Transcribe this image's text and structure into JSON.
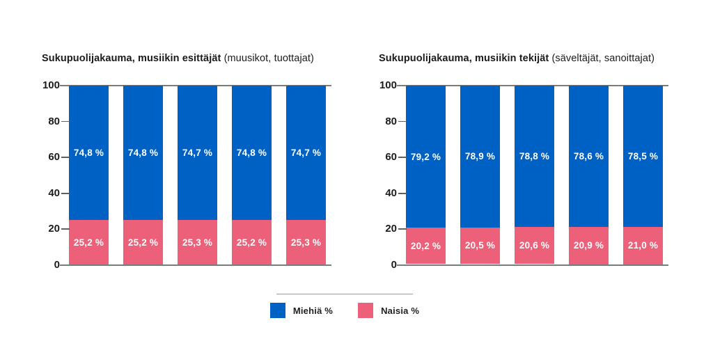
{
  "page": {
    "background": "#ffffff"
  },
  "colors": {
    "men_blue": "#0061C5",
    "women_pink": "#EC6079",
    "axis_line": "#7c7c7c",
    "text": "#1b1b1b"
  },
  "legend": {
    "items": [
      {
        "label": "Miehiä %",
        "color": "#0061C5"
      },
      {
        "label": "Naisia %",
        "color": "#EC6079"
      }
    ]
  },
  "chart_data": [
    {
      "type": "bar",
      "stacked": true,
      "title_bold": "Sukupuolijakauma, musiikin esittäjät",
      "title_normal": "(muusikot, tuottajat)",
      "bar_count": 5,
      "x_tick_labels": [],
      "series": [
        {
          "name": "Miehiä %",
          "color": "#0061C5",
          "values": [
            74.8,
            74.8,
            74.7,
            74.8,
            74.7
          ],
          "labels": [
            "74,8 %",
            "74,8 %",
            "74,7 %",
            "74,8 %",
            "74,7 %"
          ]
        },
        {
          "name": "Naisia %",
          "color": "#EC6079",
          "values": [
            25.2,
            25.2,
            25.3,
            25.2,
            25.3
          ],
          "labels": [
            "25,2 %",
            "25,2 %",
            "25,3 %",
            "25,2 %",
            "25,3 %"
          ]
        }
      ],
      "ylim": [
        0,
        100
      ],
      "y_ticks": [
        0,
        20,
        40,
        60,
        80,
        100
      ],
      "grid": false,
      "legend_position": "bottom-center-shared"
    },
    {
      "type": "bar",
      "stacked": true,
      "title_bold": "Sukupuolijakauma, musiikin tekijät",
      "title_normal": "(säveltäjät, sanoittajat)",
      "bar_count": 5,
      "x_tick_labels": [],
      "series": [
        {
          "name": "Miehiä %",
          "color": "#0061C5",
          "values": [
            79.2,
            78.9,
            78.8,
            78.6,
            78.5
          ],
          "labels": [
            "79,2 %",
            "78,9 %",
            "78,8 %",
            "78,6 %",
            "78,5 %"
          ]
        },
        {
          "name": "Naisia %",
          "color": "#EC6079",
          "values": [
            20.2,
            20.5,
            20.6,
            20.9,
            21.0
          ],
          "labels": [
            "20,2 %",
            "20,5 %",
            "20,6 %",
            "20,9 %",
            "21,0 %"
          ]
        }
      ],
      "ylim": [
        0,
        100
      ],
      "y_ticks": [
        0,
        20,
        40,
        60,
        80,
        100
      ],
      "grid": false,
      "legend_position": "bottom-center-shared"
    }
  ]
}
